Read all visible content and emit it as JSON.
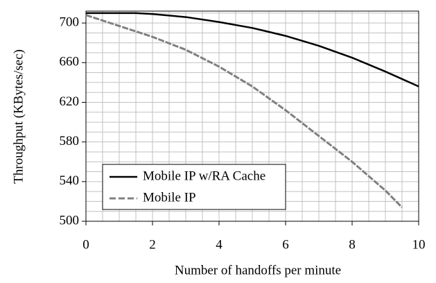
{
  "chart_data": {
    "type": "line",
    "xlabel": "Number of handoffs per minute",
    "ylabel": "Throughput (KBytes/sec)",
    "xlim": [
      0,
      10
    ],
    "xticks": [
      0,
      2,
      4,
      6,
      8,
      10
    ],
    "ylim": [
      500,
      712
    ],
    "yticks": [
      500,
      540,
      580,
      620,
      660,
      700
    ],
    "minor_xticks": [
      0.5,
      1,
      1.5,
      2.5,
      3,
      3.5,
      4.5,
      5,
      5.5,
      6.5,
      7,
      7.5,
      8.5,
      9,
      9.5
    ],
    "minor_yticks": [
      510,
      520,
      530,
      550,
      560,
      570,
      590,
      600,
      610,
      630,
      640,
      650,
      670,
      680,
      690,
      710
    ],
    "grid": true,
    "legend": "lower left",
    "series": [
      {
        "name": "Mobile IP w/RA Cache",
        "color": "#000000",
        "dashed": false,
        "x": [
          0,
          1,
          1.5,
          2,
          3,
          4,
          5,
          6,
          7,
          8,
          9,
          10
        ],
        "values": [
          710,
          710,
          710,
          709,
          706,
          701,
          695,
          687,
          677,
          665,
          651,
          636
        ]
      },
      {
        "name": "Mobile IP",
        "color": "#808080",
        "dashed": true,
        "x": [
          0,
          1,
          2,
          3,
          4,
          5,
          6,
          7,
          8,
          9,
          9.5
        ],
        "values": [
          708,
          697,
          686,
          673,
          656,
          636,
          612,
          586,
          560,
          531,
          514
        ]
      }
    ]
  }
}
